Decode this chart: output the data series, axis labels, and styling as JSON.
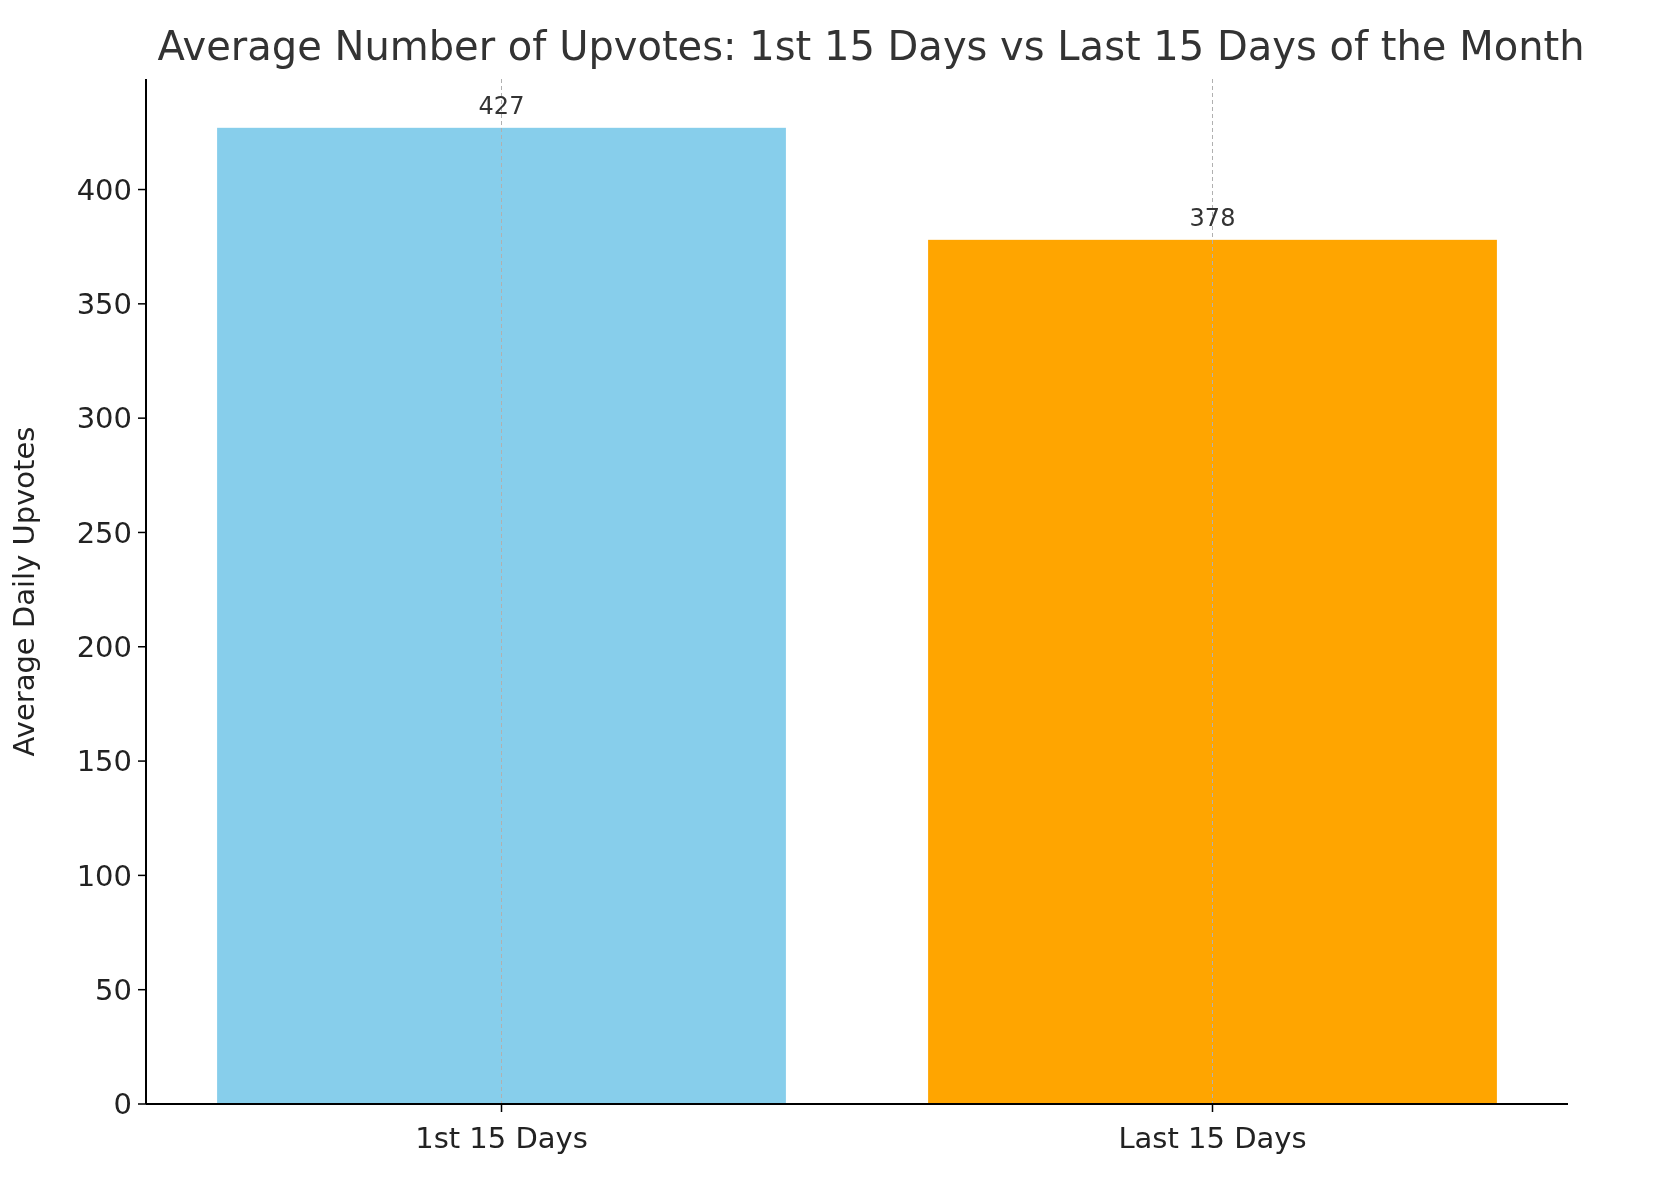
{
  "chart_data": {
    "type": "bar",
    "title": "Average Number of Upvotes: 1st 15 Days vs Last 15 Days of the Month",
    "ylabel": "Average Daily Upvotes",
    "categories": [
      "1st 15 Days",
      "Last 15 Days"
    ],
    "values": [
      427,
      378
    ],
    "colors": [
      "#87ceeb",
      "#ffa500"
    ],
    "ylim": [
      0,
      448.35
    ],
    "yticks": [
      0,
      50,
      100,
      150,
      200,
      250,
      300,
      350,
      400
    ],
    "grid": "x",
    "data_labels": true
  }
}
